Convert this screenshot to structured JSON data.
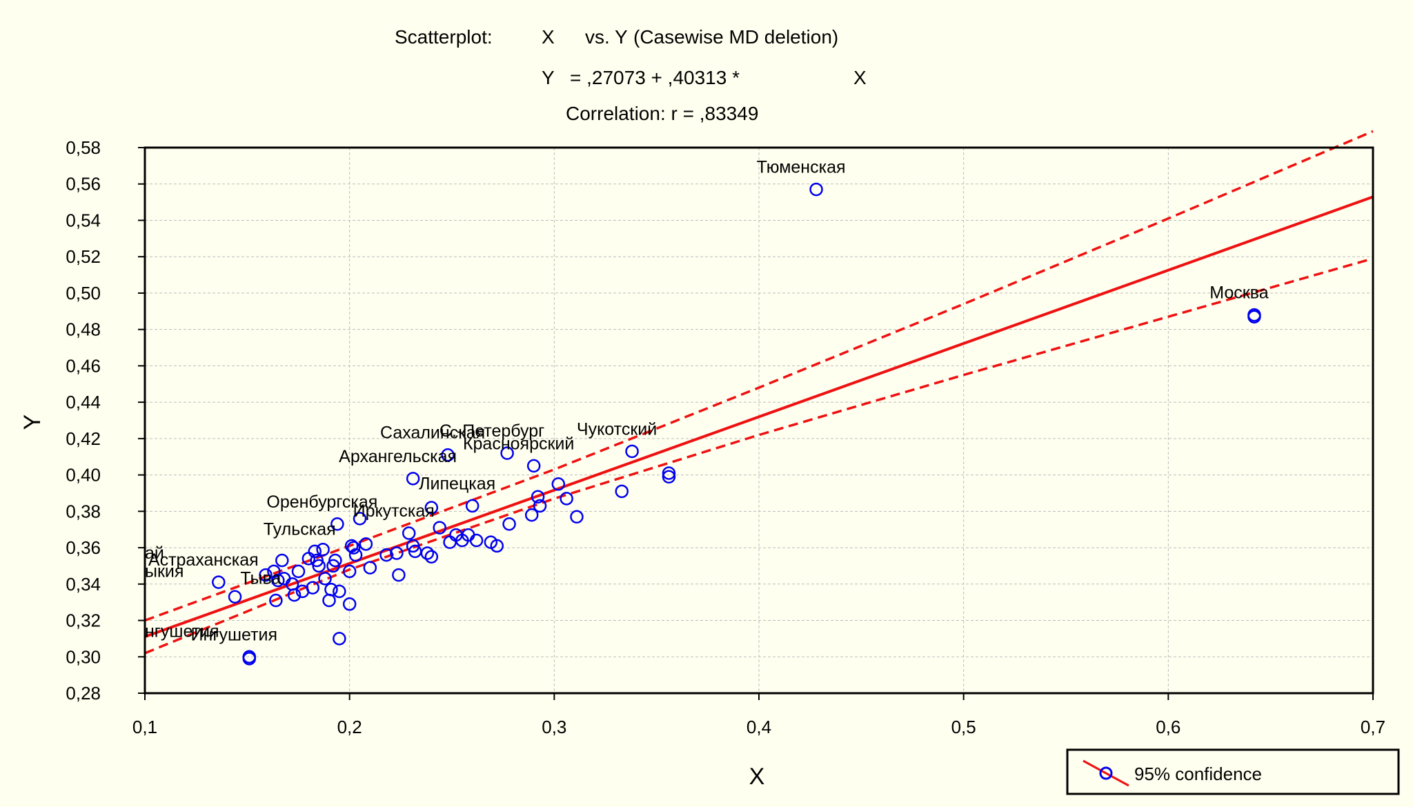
{
  "header": {
    "scatterplot": "Scatterplot:",
    "x_var": "X",
    "vs_y": "vs. Y",
    "deletion": "(Casewise MD deletion)",
    "eq_y": "Y",
    "eq_body": "= ,27073 + ,40313 *",
    "eq_x": "X",
    "correlation": "Correlation: r = ,83349"
  },
  "legend": {
    "label": "95% confidence"
  },
  "colors": {
    "background": "#fffff0",
    "line": "#ee1111",
    "marker": "#0000ee",
    "grid": "#bbbbbb",
    "axis": "#000000"
  },
  "chart_data": {
    "type": "scatter",
    "xlabel": "X",
    "ylabel": "Y",
    "xlim": [
      0.1,
      0.7
    ],
    "ylim": [
      0.28,
      0.58
    ],
    "xticks": [
      "0,1",
      "0,2",
      "0,3",
      "0,4",
      "0,5",
      "0,6",
      "0,7"
    ],
    "yticks": [
      "0,28",
      "0,30",
      "0,32",
      "0,34",
      "0,36",
      "0,38",
      "0,40",
      "0,42",
      "0,44",
      "0,46",
      "0,48",
      "0,50",
      "0,52",
      "0,54",
      "0,56",
      "0,58"
    ],
    "grid": true,
    "legend_position": "bottom-right",
    "regression": {
      "intercept": 0.27073,
      "slope": 0.40313,
      "r": 0.83349
    },
    "confidence": {
      "x": [
        0.1,
        0.2,
        0.3,
        0.4,
        0.5,
        0.6,
        0.7
      ],
      "upper": [
        0.32,
        0.361,
        0.403,
        0.448,
        0.494,
        0.541,
        0.589
      ],
      "lower": [
        0.302,
        0.348,
        0.387,
        0.422,
        0.455,
        0.487,
        0.519
      ]
    },
    "points": [
      {
        "x": 0.428,
        "y": 0.557,
        "label": "Тюменская"
      },
      {
        "x": 0.642,
        "y": 0.488,
        "label": "Москва"
      },
      {
        "x": 0.642,
        "y": 0.487
      },
      {
        "x": 0.248,
        "y": 0.411,
        "label": "Сахалинская"
      },
      {
        "x": 0.277,
        "y": 0.412,
        "label": "С.-Петербург"
      },
      {
        "x": 0.338,
        "y": 0.413,
        "label": "Чукотский"
      },
      {
        "x": 0.29,
        "y": 0.405,
        "label": "Красноярский"
      },
      {
        "x": 0.231,
        "y": 0.398,
        "label": "Архангельская"
      },
      {
        "x": 0.26,
        "y": 0.383,
        "label": "Липецкая"
      },
      {
        "x": 0.194,
        "y": 0.373,
        "label": "Оренбургская"
      },
      {
        "x": 0.229,
        "y": 0.368,
        "label": "Иркутская"
      },
      {
        "x": 0.136,
        "y": 0.341,
        "label": "Астраханская"
      },
      {
        "x": 0.183,
        "y": 0.358,
        "label": "Тульская"
      },
      {
        "x": 0.164,
        "y": 0.331,
        "label": "Тыва"
      },
      {
        "x": 0.151,
        "y": 0.3,
        "label": "Ингушетия"
      },
      {
        "x": 0.151,
        "y": 0.299
      },
      {
        "x": 0.144,
        "y": 0.333
      },
      {
        "x": 0.356,
        "y": 0.401
      },
      {
        "x": 0.356,
        "y": 0.399
      },
      {
        "x": 0.333,
        "y": 0.391
      },
      {
        "x": 0.311,
        "y": 0.377
      },
      {
        "x": 0.306,
        "y": 0.387
      },
      {
        "x": 0.302,
        "y": 0.395
      },
      {
        "x": 0.293,
        "y": 0.383
      },
      {
        "x": 0.292,
        "y": 0.388
      },
      {
        "x": 0.289,
        "y": 0.378
      },
      {
        "x": 0.278,
        "y": 0.373
      },
      {
        "x": 0.272,
        "y": 0.361
      },
      {
        "x": 0.269,
        "y": 0.363
      },
      {
        "x": 0.262,
        "y": 0.364
      },
      {
        "x": 0.258,
        "y": 0.367
      },
      {
        "x": 0.255,
        "y": 0.364
      },
      {
        "x": 0.252,
        "y": 0.367
      },
      {
        "x": 0.249,
        "y": 0.363
      },
      {
        "x": 0.244,
        "y": 0.371
      },
      {
        "x": 0.24,
        "y": 0.382
      },
      {
        "x": 0.24,
        "y": 0.355
      },
      {
        "x": 0.238,
        "y": 0.357
      },
      {
        "x": 0.232,
        "y": 0.358
      },
      {
        "x": 0.231,
        "y": 0.361
      },
      {
        "x": 0.224,
        "y": 0.345
      },
      {
        "x": 0.223,
        "y": 0.357
      },
      {
        "x": 0.218,
        "y": 0.356
      },
      {
        "x": 0.21,
        "y": 0.349
      },
      {
        "x": 0.208,
        "y": 0.362
      },
      {
        "x": 0.205,
        "y": 0.376
      },
      {
        "x": 0.203,
        "y": 0.356
      },
      {
        "x": 0.202,
        "y": 0.36
      },
      {
        "x": 0.201,
        "y": 0.361
      },
      {
        "x": 0.2,
        "y": 0.347
      },
      {
        "x": 0.2,
        "y": 0.329
      },
      {
        "x": 0.195,
        "y": 0.31
      },
      {
        "x": 0.195,
        "y": 0.336
      },
      {
        "x": 0.193,
        "y": 0.353
      },
      {
        "x": 0.192,
        "y": 0.35
      },
      {
        "x": 0.191,
        "y": 0.337
      },
      {
        "x": 0.19,
        "y": 0.331
      },
      {
        "x": 0.188,
        "y": 0.343
      },
      {
        "x": 0.187,
        "y": 0.359
      },
      {
        "x": 0.185,
        "y": 0.35
      },
      {
        "x": 0.184,
        "y": 0.353
      },
      {
        "x": 0.182,
        "y": 0.338
      },
      {
        "x": 0.18,
        "y": 0.354
      },
      {
        "x": 0.177,
        "y": 0.336
      },
      {
        "x": 0.175,
        "y": 0.347
      },
      {
        "x": 0.172,
        "y": 0.34
      },
      {
        "x": 0.173,
        "y": 0.334
      },
      {
        "x": 0.168,
        "y": 0.343
      },
      {
        "x": 0.167,
        "y": 0.353
      },
      {
        "x": 0.165,
        "y": 0.342
      },
      {
        "x": 0.163,
        "y": 0.347
      },
      {
        "x": 0.159,
        "y": 0.345
      }
    ],
    "edge_labels": [
      {
        "text": "ай",
        "y": 0.354
      },
      {
        "text": "ыкия",
        "y": 0.344
      },
      {
        "text": "нгушетия",
        "y": 0.311
      }
    ]
  }
}
